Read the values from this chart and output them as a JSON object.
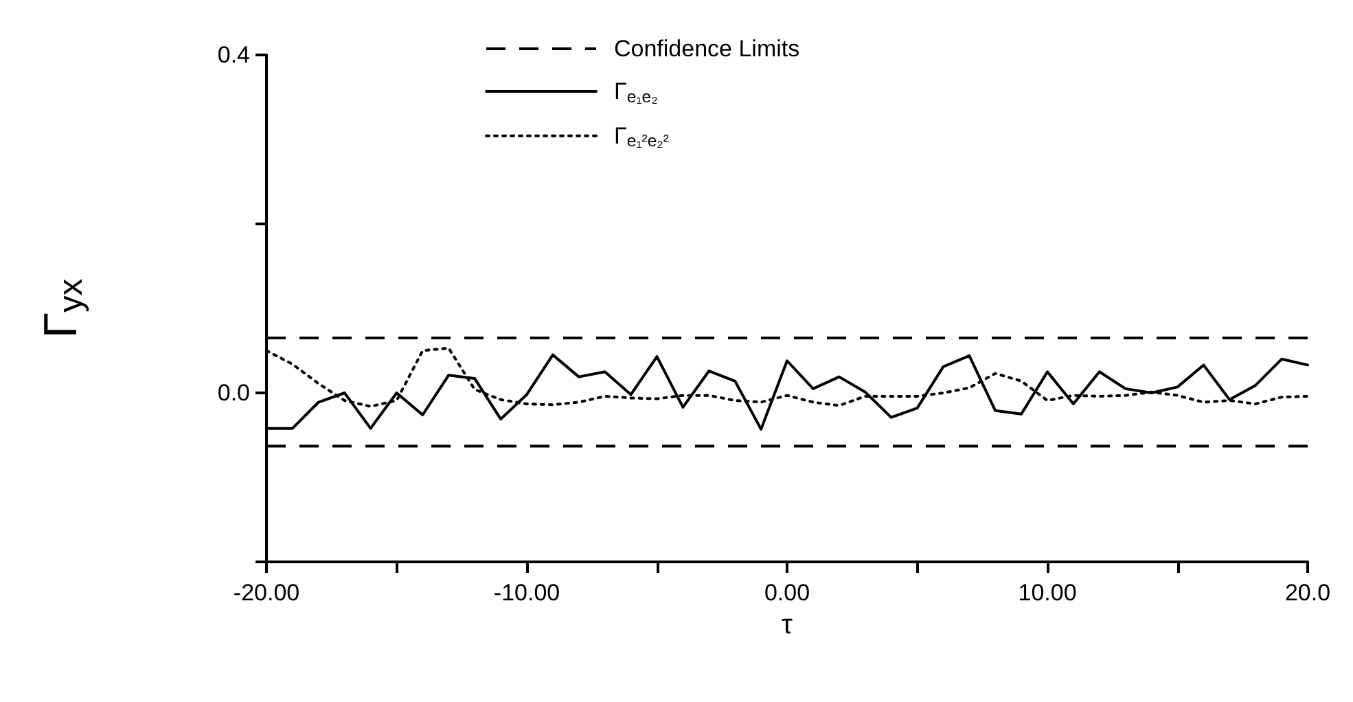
{
  "chart_data": {
    "type": "line",
    "xlabel": "τ",
    "ylabel": "Γ$_{yx}$",
    "marker": "none",
    "legend": "top",
    "grid": false,
    "x": [
      -20,
      -19,
      -18,
      -17,
      -16,
      -15,
      -14,
      -13,
      -12,
      -11,
      -10,
      -9,
      -8,
      -7,
      -6,
      -5,
      -4,
      -3,
      -2,
      -1,
      0,
      1,
      2,
      3,
      4,
      5,
      6,
      7,
      8,
      9,
      10,
      11,
      12,
      13,
      14,
      15,
      16,
      17,
      18,
      19,
      20
    ],
    "series": [
      {
        "name": "Γ$_{e₁e₂}$",
        "color": "#000000",
        "line_style": "solid",
        "values": [
          -0.042,
          -0.042,
          -0.011,
          0.0,
          -0.042,
          0.0,
          -0.026,
          0.021,
          0.017,
          -0.031,
          -0.002,
          0.045,
          0.019,
          0.025,
          -0.002,
          0.043,
          -0.017,
          0.026,
          0.014,
          -0.043,
          0.038,
          0.005,
          0.019,
          0.001,
          -0.029,
          -0.018,
          0.031,
          0.044,
          -0.021,
          -0.025,
          0.025,
          -0.013,
          0.025,
          0.005,
          0.0,
          0.007,
          0.033,
          -0.008,
          0.009,
          0.04,
          0.033
        ]
      },
      {
        "name": "Γ$_{e₁²e₂²}$",
        "color": "#000000",
        "line_style": "dotted",
        "values": [
          0.05,
          0.034,
          0.011,
          -0.009,
          -0.016,
          -0.009,
          0.05,
          0.053,
          0.004,
          -0.008,
          -0.013,
          -0.014,
          -0.011,
          -0.004,
          -0.006,
          -0.007,
          -0.003,
          -0.003,
          -0.009,
          -0.011,
          -0.003,
          -0.011,
          -0.015,
          -0.004,
          -0.004,
          -0.004,
          0.0,
          0.006,
          0.023,
          0.014,
          -0.009,
          -0.003,
          -0.004,
          -0.003,
          0.001,
          -0.003,
          -0.011,
          -0.009,
          -0.013,
          -0.005,
          -0.004
        ]
      }
    ],
    "ref_lines": [
      {
        "axis": "y",
        "value": 0.065,
        "label": "Confidence Limits",
        "color": "#000000",
        "line_style": "dashed"
      },
      {
        "axis": "y",
        "value": -0.063,
        "color": "#000000",
        "line_style": "dashed"
      }
    ],
    "xlim": [
      -20,
      20
    ],
    "ylim": [
      -0.2,
      0.4
    ],
    "xticks": [
      {
        "value": -20,
        "label": "-20.00"
      },
      {
        "value": -15,
        "label": null
      },
      {
        "value": -10,
        "label": "-10.00"
      },
      {
        "value": -5,
        "label": null
      },
      {
        "value": 0,
        "label": "0.00"
      },
      {
        "value": 5,
        "label": null
      },
      {
        "value": 10,
        "label": "10.00"
      },
      {
        "value": 15,
        "label": null
      },
      {
        "value": 20,
        "label": "20.0"
      }
    ],
    "yticks": [
      {
        "value": -0.2,
        "label": null
      },
      {
        "value": 0,
        "label": "0.0"
      },
      {
        "value": 0.2,
        "label": null
      },
      {
        "value": 0.4,
        "label": "0.4"
      }
    ]
  }
}
